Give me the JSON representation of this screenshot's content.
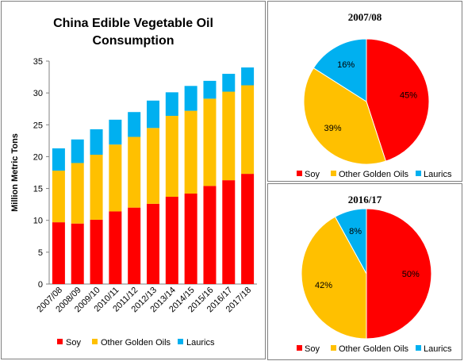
{
  "colors": {
    "soy": "#FF0000",
    "other": "#FFC000",
    "laurics": "#00B0F0"
  },
  "chart_data": [
    {
      "type": "bar",
      "stacked": true,
      "title": "China Edible Vegetable Oil Consumption",
      "title_lines": [
        "China Edible Vegetable Oil",
        "Consumption"
      ],
      "xlabel": "",
      "ylabel": "Million Metric Tons",
      "ylim": [
        0,
        35
      ],
      "yticks": [
        0,
        5,
        10,
        15,
        20,
        25,
        30,
        35
      ],
      "grid": false,
      "legend": "bottom",
      "categories": [
        "2007/08",
        "2008/09",
        "2009/10",
        "2010/11",
        "2011/12",
        "2012/13",
        "2013/14",
        "2014/15",
        "2015/16",
        "2016/17",
        "2017/18"
      ],
      "series": [
        {
          "name": "Soy",
          "color": "#FF0000",
          "values": [
            9.7,
            9.5,
            10.1,
            11.4,
            12.0,
            12.6,
            13.7,
            14.2,
            15.4,
            16.3,
            17.3
          ]
        },
        {
          "name": "Other Golden Oils",
          "color": "#FFC000",
          "values": [
            8.1,
            9.5,
            10.2,
            10.5,
            11.1,
            11.9,
            12.7,
            13.0,
            13.7,
            13.9,
            13.9
          ]
        },
        {
          "name": "Laurics",
          "color": "#00B0F0",
          "values": [
            3.5,
            3.7,
            4.0,
            3.9,
            3.9,
            4.3,
            3.7,
            3.9,
            2.8,
            2.8,
            2.8
          ]
        }
      ]
    },
    {
      "type": "pie",
      "title": "2007/08",
      "legend": "bottom",
      "slices": [
        {
          "name": "Soy",
          "value": 45,
          "label": "45%",
          "color": "#FF0000"
        },
        {
          "name": "Other Golden Oils",
          "value": 39,
          "label": "39%",
          "color": "#FFC000"
        },
        {
          "name": "Laurics",
          "value": 16,
          "label": "16%",
          "color": "#00B0F0"
        }
      ]
    },
    {
      "type": "pie",
      "title": "2016/17",
      "legend": "bottom",
      "slices": [
        {
          "name": "Soy",
          "value": 50,
          "label": "50%",
          "color": "#FF0000"
        },
        {
          "name": "Other Golden Oils",
          "value": 42,
          "label": "42%",
          "color": "#FFC000"
        },
        {
          "name": "Laurics",
          "value": 8,
          "label": "8%",
          "color": "#00B0F0"
        }
      ]
    }
  ]
}
